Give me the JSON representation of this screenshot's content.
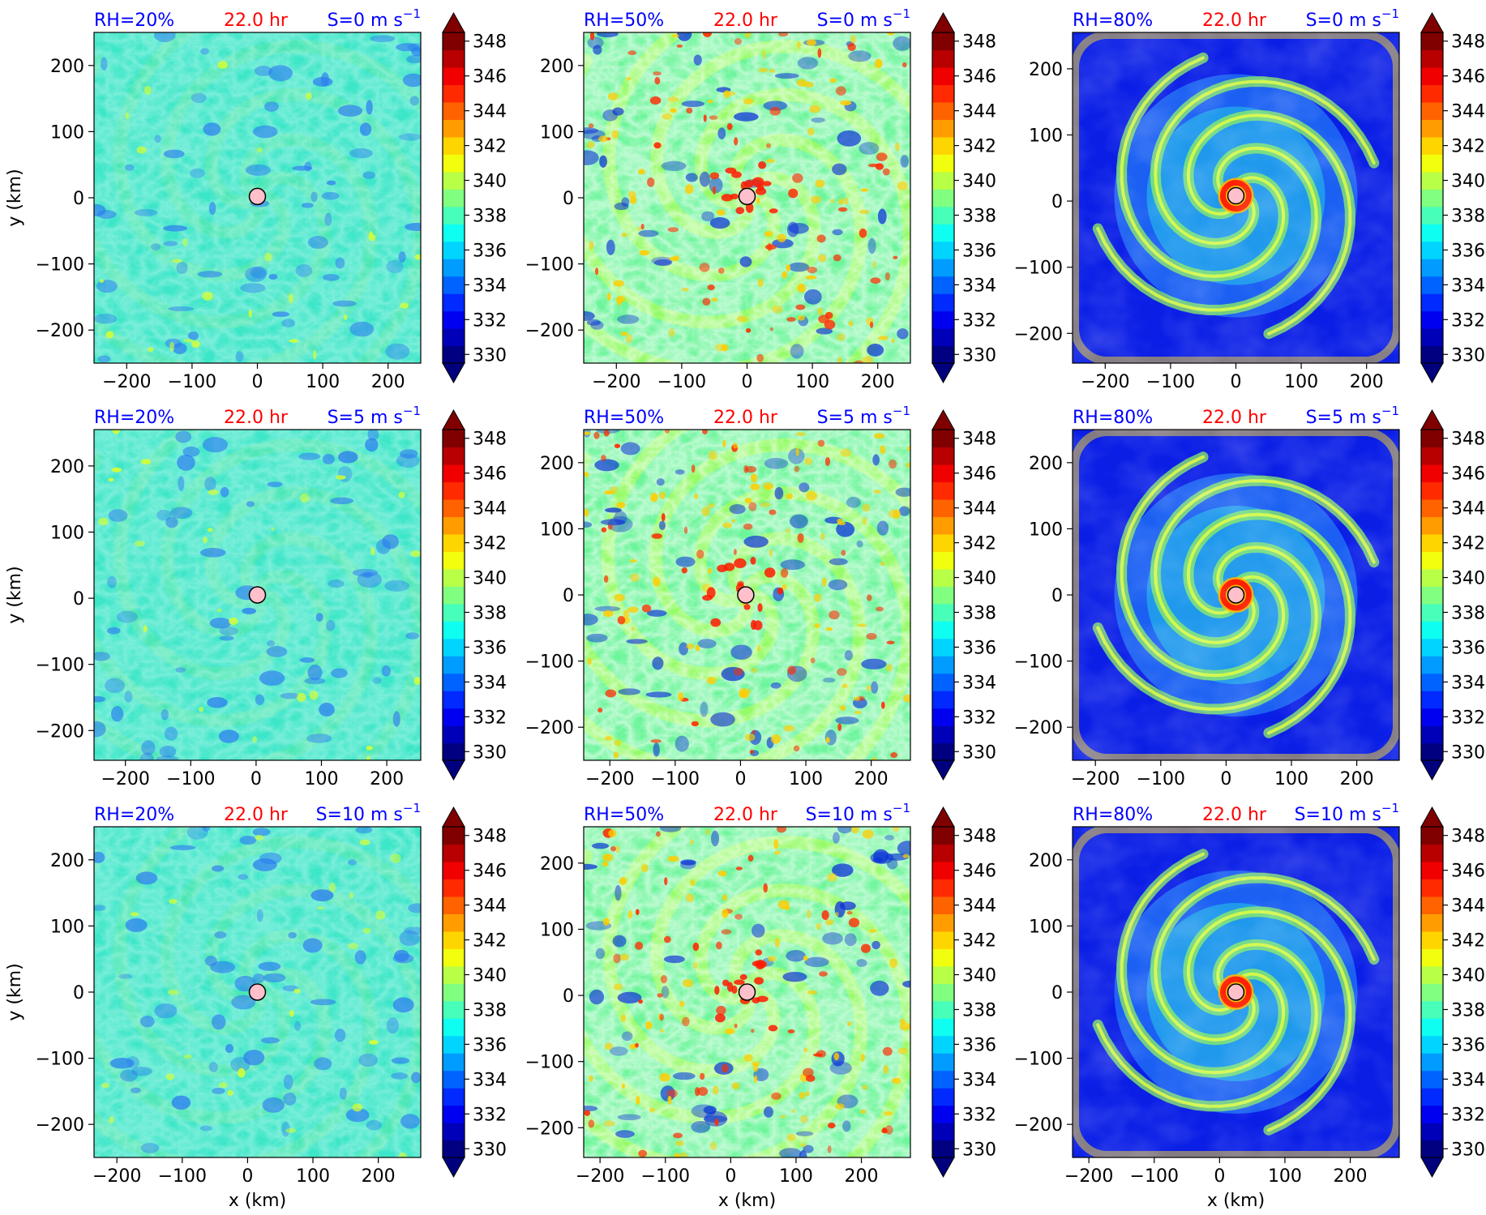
{
  "figure": {
    "xlabel": "x (km)",
    "ylabel": "y (km)",
    "colorbar": {
      "levels": [
        330,
        331,
        332,
        333,
        334,
        335,
        336,
        337,
        338,
        339,
        340,
        341,
        342,
        343,
        344,
        345,
        346,
        347,
        348,
        349
      ],
      "tick_labels": [
        "330",
        "332",
        "334",
        "336",
        "338",
        "340",
        "342",
        "344",
        "346",
        "348"
      ],
      "extend": "both",
      "colormap": "jet"
    },
    "time_label": "22.0 hr",
    "colors": {
      "rh_label": "#0000ff",
      "time_label": "#ff0000",
      "shear_label": "#0000ff",
      "center_marker": "#ffc0cb"
    }
  },
  "chart_data": [
    {
      "type": "heatmap",
      "rh_label": "RH=20%",
      "time_label": "22.0 hr",
      "shear_label": "S=0 m s",
      "x_ticks": [
        "−200",
        "−100",
        "0",
        "100",
        "200"
      ],
      "x_tick_values": [
        -200,
        -100,
        0,
        100,
        200
      ],
      "y_ticks": [
        "−200",
        "−100",
        "0",
        "100",
        "200"
      ],
      "y_tick_values": [
        -200,
        -100,
        0,
        100,
        200
      ],
      "xlim": [
        -250,
        250
      ],
      "ylim": [
        -250,
        250
      ],
      "center": [
        0,
        2
      ],
      "regime": "dry",
      "xlabel": "",
      "ylabel": "y (km)"
    },
    {
      "type": "heatmap",
      "rh_label": "RH=50%",
      "time_label": "22.0 hr",
      "shear_label": "S=0 m s",
      "x_ticks": [
        "−200",
        "−100",
        "0",
        "100",
        "200"
      ],
      "x_tick_values": [
        -200,
        -100,
        0,
        100,
        200
      ],
      "y_ticks": [
        "−200",
        "−100",
        "0",
        "100",
        "200"
      ],
      "y_tick_values": [
        -200,
        -100,
        0,
        100,
        200
      ],
      "xlim": [
        -250,
        250
      ],
      "ylim": [
        -250,
        250
      ],
      "center": [
        0,
        2
      ],
      "regime": "mid",
      "xlabel": "",
      "ylabel": ""
    },
    {
      "type": "heatmap",
      "rh_label": "RH=80%",
      "time_label": "22.0 hr",
      "shear_label": "S=0 m s",
      "x_ticks": [
        "−200",
        "−100",
        "0",
        "100",
        "200"
      ],
      "x_tick_values": [
        -200,
        -100,
        0,
        100,
        200
      ],
      "y_ticks": [
        "−200",
        "−100",
        "0",
        "100",
        "200"
      ],
      "y_tick_values": [
        -200,
        -100,
        0,
        100,
        200
      ],
      "xlim": [
        -250,
        250
      ],
      "ylim": [
        -245,
        255
      ],
      "center": [
        0,
        8
      ],
      "regime": "moist",
      "xlabel": "",
      "ylabel": ""
    },
    {
      "type": "heatmap",
      "rh_label": "RH=20%",
      "time_label": "22.0 hr",
      "shear_label": "S=5 m s",
      "x_ticks": [
        "−200",
        "−100",
        "0",
        "100",
        "200"
      ],
      "x_tick_values": [
        -200,
        -100,
        0,
        100,
        200
      ],
      "y_ticks": [
        "−200",
        "−100",
        "0",
        "100",
        "200"
      ],
      "y_tick_values": [
        -200,
        -100,
        0,
        100,
        200
      ],
      "xlim": [
        -248,
        252
      ],
      "ylim": [
        -245,
        255
      ],
      "center": [
        2,
        5
      ],
      "regime": "dry",
      "xlabel": "",
      "ylabel": "y (km)"
    },
    {
      "type": "heatmap",
      "rh_label": "RH=50%",
      "time_label": "22.0 hr",
      "shear_label": "S=5 m s",
      "x_ticks": [
        "−200",
        "−100",
        "0",
        "100",
        "200"
      ],
      "x_tick_values": [
        -200,
        -100,
        0,
        100,
        200
      ],
      "y_ticks": [
        "−200",
        "−100",
        "0",
        "100",
        "200"
      ],
      "y_tick_values": [
        -200,
        -100,
        0,
        100,
        200
      ],
      "xlim": [
        -240,
        260
      ],
      "ylim": [
        -250,
        250
      ],
      "center": [
        8,
        0
      ],
      "regime": "mid",
      "xlabel": "",
      "ylabel": ""
    },
    {
      "type": "heatmap",
      "rh_label": "RH=80%",
      "time_label": "22.0 hr",
      "shear_label": "S=5 m s",
      "x_ticks": [
        "−200",
        "−100",
        "0",
        "100",
        "200"
      ],
      "x_tick_values": [
        -200,
        -100,
        0,
        100,
        200
      ],
      "y_ticks": [
        "−200",
        "−100",
        "0",
        "100",
        "200"
      ],
      "y_tick_values": [
        -200,
        -100,
        0,
        100,
        200
      ],
      "xlim": [
        -235,
        265
      ],
      "ylim": [
        -250,
        250
      ],
      "center": [
        15,
        0
      ],
      "regime": "moist",
      "xlabel": "",
      "ylabel": ""
    },
    {
      "type": "heatmap",
      "rh_label": "RH=20%",
      "time_label": "22.0 hr",
      "shear_label": "S=10 m s",
      "x_ticks": [
        "−200",
        "−100",
        "0",
        "100",
        "200"
      ],
      "x_tick_values": [
        -200,
        -100,
        0,
        100,
        200
      ],
      "y_ticks": [
        "−200",
        "−100",
        "0",
        "100",
        "200"
      ],
      "y_tick_values": [
        -200,
        -100,
        0,
        100,
        200
      ],
      "xlim": [
        -235,
        265
      ],
      "ylim": [
        -250,
        250
      ],
      "center": [
        15,
        0
      ],
      "regime": "dry",
      "xlabel": "x (km)",
      "ylabel": "y (km)"
    },
    {
      "type": "heatmap",
      "rh_label": "RH=50%",
      "time_label": "22.0 hr",
      "shear_label": "S=10 m s",
      "x_ticks": [
        "−200",
        "−100",
        "0",
        "100",
        "200"
      ],
      "x_tick_values": [
        -200,
        -100,
        0,
        100,
        200
      ],
      "y_ticks": [
        "−200",
        "−100",
        "0",
        "100",
        "200"
      ],
      "y_tick_values": [
        -200,
        -100,
        0,
        100,
        200
      ],
      "xlim": [
        -225,
        275
      ],
      "ylim": [
        -245,
        255
      ],
      "center": [
        25,
        5
      ],
      "regime": "mid",
      "xlabel": "x (km)",
      "ylabel": ""
    },
    {
      "type": "heatmap",
      "rh_label": "RH=80%",
      "time_label": "22.0 hr",
      "shear_label": "S=10 m s",
      "x_ticks": [
        "−200",
        "−100",
        "0",
        "100",
        "200"
      ],
      "x_tick_values": [
        -200,
        -100,
        0,
        100,
        200
      ],
      "y_ticks": [
        "−200",
        "−100",
        "0",
        "100",
        "200"
      ],
      "y_tick_values": [
        -200,
        -100,
        0,
        100,
        200
      ],
      "xlim": [
        -225,
        275
      ],
      "ylim": [
        -250,
        250
      ],
      "center": [
        25,
        0
      ],
      "regime": "moist",
      "xlabel": "x (km)",
      "ylabel": ""
    }
  ]
}
